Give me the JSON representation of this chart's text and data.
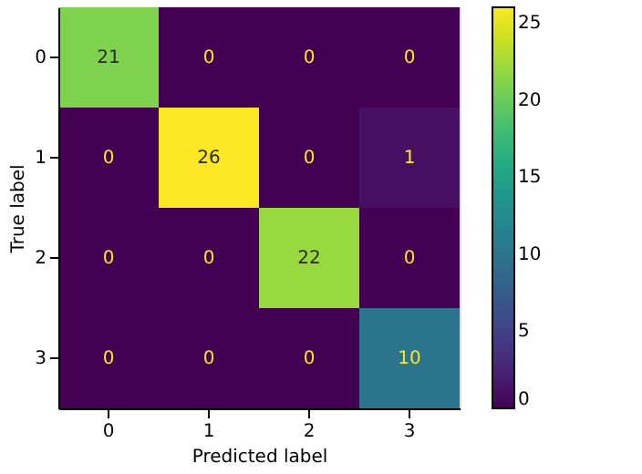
{
  "chart_data": {
    "type": "heatmap",
    "xlabel": "Predicted label",
    "ylabel": "True label",
    "categories": [
      "0",
      "1",
      "2",
      "3"
    ],
    "y_categories": [
      "0",
      "1",
      "2",
      "3"
    ],
    "cells": [
      [
        21,
        0,
        0,
        0
      ],
      [
        0,
        26,
        0,
        1
      ],
      [
        0,
        0,
        22,
        0
      ],
      [
        0,
        0,
        0,
        10
      ]
    ],
    "data_labels": true,
    "clim": [
      0,
      26
    ],
    "cticks": [
      0,
      5,
      10,
      15,
      20,
      25
    ],
    "grid": false
  }
}
